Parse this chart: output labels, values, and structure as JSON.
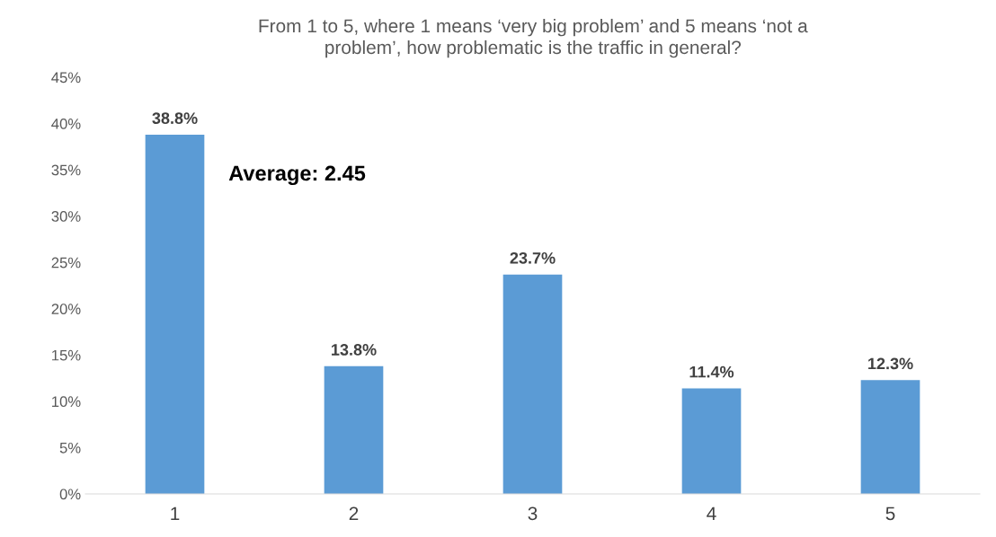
{
  "chart_data": {
    "type": "bar",
    "title": "From 1 to 5, where 1 means ‘very big problem’ and 5 means ‘not a\nproblem’, how problematic is the traffic in general?",
    "categories": [
      "1",
      "2",
      "3",
      "4",
      "5"
    ],
    "values": [
      38.8,
      13.8,
      23.7,
      11.4,
      12.3
    ],
    "value_labels": [
      "38.8%",
      "13.8%",
      "23.7%",
      "11.4%",
      "12.3%"
    ],
    "color": "#5b9bd5",
    "ylim": [
      0,
      45
    ],
    "yticks": [
      {
        "value": 0,
        "label": "0%"
      },
      {
        "value": 5,
        "label": "5%"
      },
      {
        "value": 10,
        "label": "10%"
      },
      {
        "value": 15,
        "label": "15%"
      },
      {
        "value": 20,
        "label": "20%"
      },
      {
        "value": 25,
        "label": "25%"
      },
      {
        "value": 30,
        "label": "30%"
      },
      {
        "value": 35,
        "label": "35%"
      },
      {
        "value": 40,
        "label": "40%"
      },
      {
        "value": 45,
        "label": "45%"
      }
    ],
    "annotations": [
      "Average: 2.45"
    ],
    "grid": false,
    "legend": false
  }
}
